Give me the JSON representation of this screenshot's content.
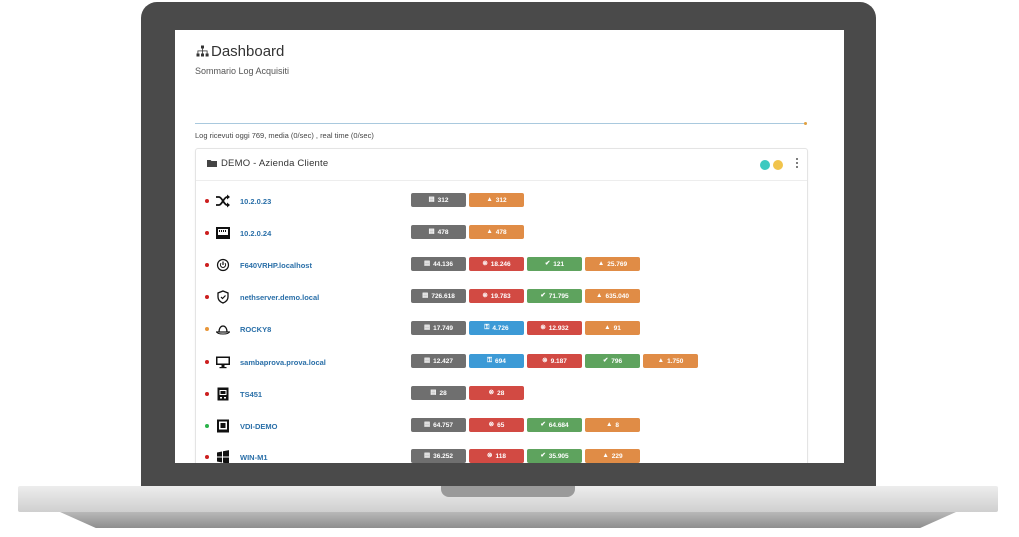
{
  "header": {
    "title": "Dashboard",
    "subtitle": "Sommario Log Acquisiti",
    "log_summary": "Log ricevuti oggi 769, media (0/sec) , real time (0/sec)"
  },
  "panel": {
    "title": "DEMO - Azienda Cliente",
    "status_colors": [
      "#3cc9c0",
      "#f1c44c"
    ]
  },
  "hosts": [
    {
      "name": "10.2.0.23",
      "status": "#cc1f1f",
      "icon": "shuffle-icon",
      "badges": [
        {
          "kind": "gray",
          "icon": "list-icon",
          "value": "312"
        },
        {
          "kind": "orange",
          "icon": "warning-icon",
          "value": "312"
        }
      ]
    },
    {
      "name": "10.2.0.24",
      "status": "#cc1f1f",
      "icon": "network-port-icon",
      "badges": [
        {
          "kind": "gray",
          "icon": "list-icon",
          "value": "478"
        },
        {
          "kind": "orange",
          "icon": "warning-icon",
          "value": "478"
        }
      ]
    },
    {
      "name": "F640VRHP.localhost",
      "status": "#cc1f1f",
      "icon": "power-icon",
      "badges": [
        {
          "kind": "gray",
          "icon": "list-icon",
          "value": "44.136"
        },
        {
          "kind": "red",
          "icon": "error-icon",
          "value": "18.246"
        },
        {
          "kind": "green",
          "icon": "check-icon",
          "value": "121"
        },
        {
          "kind": "orange",
          "icon": "warning-icon",
          "value": "25.769"
        }
      ]
    },
    {
      "name": "nethserver.demo.local",
      "status": "#cc1f1f",
      "icon": "shield-icon",
      "badges": [
        {
          "kind": "gray",
          "icon": "list-icon",
          "value": "726.618"
        },
        {
          "kind": "red",
          "icon": "error-icon",
          "value": "19.783"
        },
        {
          "kind": "green",
          "icon": "check-icon",
          "value": "71.795"
        },
        {
          "kind": "orange",
          "icon": "warning-icon",
          "value": "635.040"
        }
      ]
    },
    {
      "name": "ROCKY8",
      "status": "#e8963a",
      "icon": "hat-icon",
      "badges": [
        {
          "kind": "gray",
          "icon": "list-icon",
          "value": "17.749"
        },
        {
          "kind": "blue",
          "icon": "key-icon",
          "value": "4.726"
        },
        {
          "kind": "red",
          "icon": "error-icon",
          "value": "12.932"
        },
        {
          "kind": "orange",
          "icon": "warning-icon",
          "value": "91"
        }
      ]
    },
    {
      "name": "sambaprova.prova.local",
      "status": "#cc1f1f",
      "icon": "monitor-icon",
      "badges": [
        {
          "kind": "gray",
          "icon": "list-icon",
          "value": "12.427"
        },
        {
          "kind": "blue",
          "icon": "key-icon",
          "value": "694"
        },
        {
          "kind": "red",
          "icon": "error-icon",
          "value": "9.187"
        },
        {
          "kind": "green",
          "icon": "check-icon",
          "value": "796"
        },
        {
          "kind": "orange",
          "icon": "warning-icon",
          "value": "1.750"
        }
      ]
    },
    {
      "name": "TS451",
      "status": "#cc1f1f",
      "icon": "nas-icon",
      "badges": [
        {
          "kind": "gray",
          "icon": "list-icon",
          "value": "28"
        },
        {
          "kind": "red",
          "icon": "error-icon",
          "value": "28"
        }
      ]
    },
    {
      "name": "VDI-DEMO",
      "status": "#2bb34a",
      "icon": "vm-icon",
      "badges": [
        {
          "kind": "gray",
          "icon": "list-icon",
          "value": "64.757"
        },
        {
          "kind": "red",
          "icon": "error-icon",
          "value": "65"
        },
        {
          "kind": "green",
          "icon": "check-icon",
          "value": "64.684"
        },
        {
          "kind": "orange",
          "icon": "warning-icon",
          "value": "8"
        }
      ]
    },
    {
      "name": "WIN-M1",
      "status": "#cc1f1f",
      "icon": "windows-icon",
      "badges": [
        {
          "kind": "gray",
          "icon": "list-icon",
          "value": "36.252"
        },
        {
          "kind": "red",
          "icon": "error-icon",
          "value": "118"
        },
        {
          "kind": "green",
          "icon": "check-icon",
          "value": "35.905"
        },
        {
          "kind": "orange",
          "icon": "warning-icon",
          "value": "229"
        }
      ]
    }
  ]
}
